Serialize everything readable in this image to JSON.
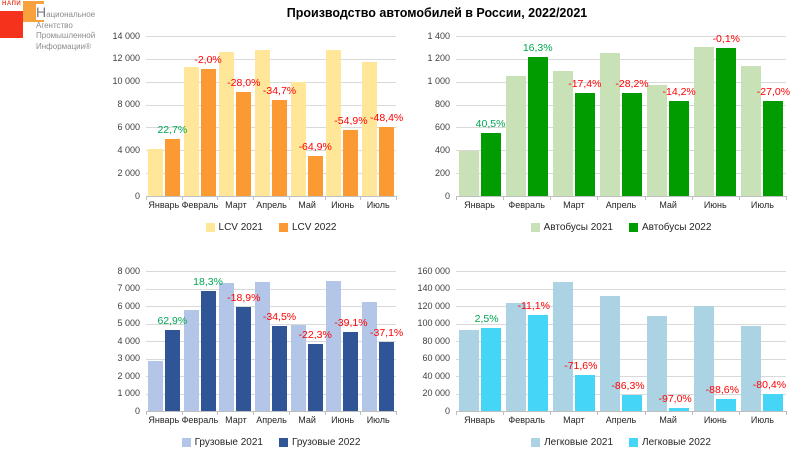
{
  "logo": {
    "brand": "НАПИ",
    "lines": [
      "Национальное",
      "Агентство",
      "Промышленной",
      "Информации®"
    ]
  },
  "title": "Производство автомобилей в России, 2022/2021",
  "colors": {
    "green_label": "#00a650",
    "red_label": "#ff0000",
    "gridline": "#d9d9d9",
    "axis": "#bfbfbf",
    "tick_text": "#404040"
  },
  "chart_data": [
    {
      "id": "lcv",
      "type": "bar",
      "position": "top-left",
      "categories": [
        "Январь",
        "Февраль",
        "Март",
        "Апрель",
        "Май",
        "Июнь",
        "Июль"
      ],
      "ylim": [
        0,
        14000
      ],
      "ystep": 2000,
      "grid": true,
      "legend_position": "bottom",
      "series": [
        {
          "name": "LCV 2021",
          "color": "#ffe699",
          "values": [
            4100,
            11300,
            12600,
            12800,
            10000,
            12800,
            11700
          ]
        },
        {
          "name": "LCV 2022",
          "color": "#fb9a32",
          "values": [
            5030,
            11100,
            9070,
            8360,
            3510,
            5770,
            6040
          ]
        }
      ],
      "change_labels": [
        {
          "text": "22,7%",
          "color": "green"
        },
        {
          "text": "-2,0%",
          "color": "red"
        },
        {
          "text": "-28,0%",
          "color": "red"
        },
        {
          "text": "-34,7%",
          "color": "red"
        },
        {
          "text": "-64,9%",
          "color": "red"
        },
        {
          "text": "-54,9%",
          "color": "red"
        },
        {
          "text": "-48,4%",
          "color": "red"
        }
      ]
    },
    {
      "id": "bus",
      "type": "bar",
      "position": "top-right",
      "categories": [
        "Январь",
        "Февраль",
        "Март",
        "Апрель",
        "Май",
        "Июнь",
        "Июль"
      ],
      "ylim": [
        0,
        1400
      ],
      "ystep": 200,
      "grid": true,
      "legend_position": "bottom",
      "series": [
        {
          "name": "Автобусы 2021",
          "color": "#c8e1b6",
          "values": [
            390,
            1050,
            1090,
            1250,
            970,
            1300,
            1140
          ]
        },
        {
          "name": "Автобусы 2022",
          "color": "#009c00",
          "values": [
            550,
            1220,
            900,
            900,
            830,
            1298,
            830
          ]
        }
      ],
      "change_labels": [
        {
          "text": "40,5%",
          "color": "green"
        },
        {
          "text": "16,3%",
          "color": "green"
        },
        {
          "text": "-17,4%",
          "color": "red"
        },
        {
          "text": "-28,2%",
          "color": "red"
        },
        {
          "text": "-14,2%",
          "color": "red"
        },
        {
          "text": "-0,1%",
          "color": "red"
        },
        {
          "text": "-27,0%",
          "color": "red"
        }
      ]
    },
    {
      "id": "truck",
      "type": "bar",
      "position": "bottom-left",
      "categories": [
        "Январь",
        "Февраль",
        "Март",
        "Апрель",
        "Май",
        "Июнь",
        "Июль"
      ],
      "ylim": [
        0,
        8000
      ],
      "ystep": 1000,
      "grid": true,
      "legend_position": "bottom",
      "series": [
        {
          "name": "Грузовые 2021",
          "color": "#b4c6e7",
          "values": [
            2850,
            5800,
            7300,
            7400,
            4900,
            7450,
            6250
          ]
        },
        {
          "name": "Грузовые 2022",
          "color": "#2f5597",
          "values": [
            4640,
            6860,
            5920,
            4850,
            3810,
            4540,
            3930
          ]
        }
      ],
      "change_labels": [
        {
          "text": "62,9%",
          "color": "green"
        },
        {
          "text": "18,3%",
          "color": "green"
        },
        {
          "text": "-18,9%",
          "color": "red"
        },
        {
          "text": "-34,5%",
          "color": "red"
        },
        {
          "text": "-22,3%",
          "color": "red"
        },
        {
          "text": "-39,1%",
          "color": "red"
        },
        {
          "text": "-37,1%",
          "color": "red"
        }
      ]
    },
    {
      "id": "car",
      "type": "bar",
      "position": "bottom-right",
      "categories": [
        "Январь",
        "Февраль",
        "Март",
        "Апрель",
        "Май",
        "Июнь",
        "Июль"
      ],
      "ylim": [
        0,
        160000
      ],
      "ystep": 20000,
      "grid": true,
      "legend_position": "bottom",
      "series": [
        {
          "name": "Легковые 2021",
          "color": "#acd3e3",
          "values": [
            92500,
            124000,
            147000,
            132000,
            109000,
            120000,
            97000
          ]
        },
        {
          "name": "Легковые 2022",
          "color": "#45d5f7",
          "values": [
            94800,
            110200,
            41700,
            18100,
            3300,
            13700,
            19000
          ]
        }
      ],
      "change_labels": [
        {
          "text": "2,5%",
          "color": "green"
        },
        {
          "text": "-11,1%",
          "color": "red"
        },
        {
          "text": "-71,6%",
          "color": "red"
        },
        {
          "text": "-86,3%",
          "color": "red"
        },
        {
          "text": "-97,0%",
          "color": "red"
        },
        {
          "text": "-88,6%",
          "color": "red"
        },
        {
          "text": "-80,4%",
          "color": "red"
        }
      ]
    }
  ]
}
